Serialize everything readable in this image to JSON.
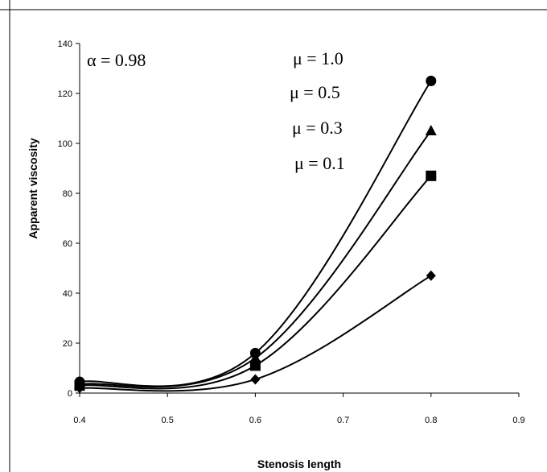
{
  "chart_data": {
    "type": "line",
    "title": "",
    "xlabel": "Stenosis length",
    "ylabel": "Apparent viscosity",
    "xlim": [
      0.4,
      0.9
    ],
    "ylim": [
      0,
      140
    ],
    "xticks": [
      "0.4",
      "0.5",
      "0.6",
      "0.7",
      "0.8",
      "0.9"
    ],
    "yticks": [
      "0",
      "20",
      "40",
      "60",
      "80",
      "100",
      "120",
      "140"
    ],
    "grid": false,
    "legend": "none",
    "annotations": [
      "α = 0.98",
      "μ = 1.0",
      "μ = 0.5",
      "μ = 0.3",
      "μ = 0.1"
    ],
    "x": [
      0.4,
      0.6,
      0.8
    ],
    "series": [
      {
        "marker": "circle",
        "values": [
          4.5,
          16,
          125
        ]
      },
      {
        "marker": "triangle",
        "values": [
          3.5,
          14,
          105
        ]
      },
      {
        "marker": "square",
        "values": [
          3,
          11,
          87
        ]
      },
      {
        "marker": "diamond",
        "values": [
          2,
          5.5,
          47
        ]
      }
    ]
  }
}
